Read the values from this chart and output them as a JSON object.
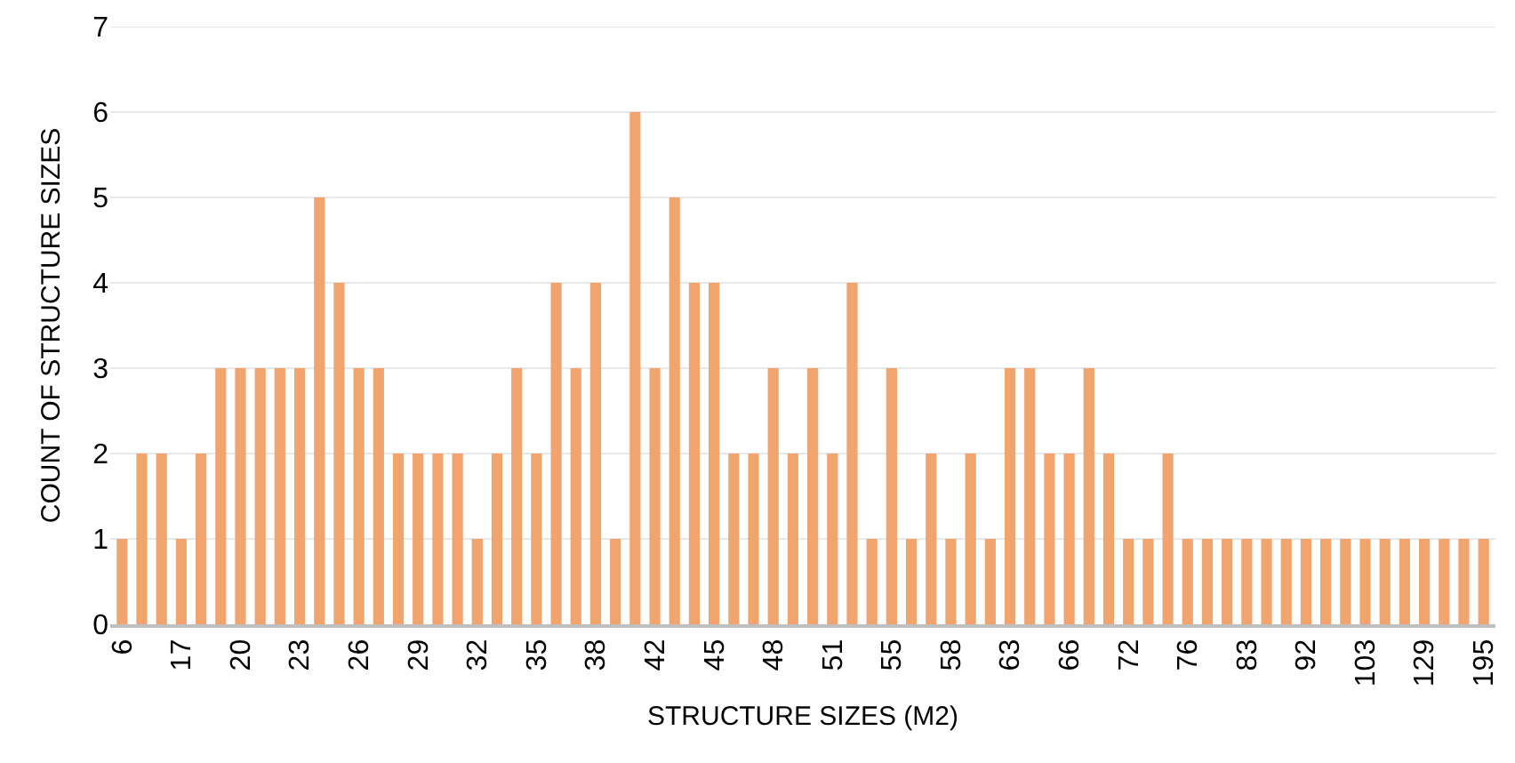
{
  "chart_data": {
    "type": "bar",
    "xlabel": "STRUCTURE SIZES (M2)",
    "ylabel": "COUNT OF STRUCTURE SIZES",
    "categories": [
      "6",
      null,
      null,
      "17",
      null,
      null,
      "20",
      null,
      null,
      "23",
      null,
      null,
      "26",
      null,
      null,
      "29",
      null,
      null,
      "32",
      null,
      null,
      "35",
      null,
      null,
      "38",
      null,
      null,
      "42",
      null,
      null,
      "45",
      null,
      null,
      "48",
      null,
      null,
      "51",
      null,
      null,
      "55",
      null,
      null,
      "58",
      null,
      null,
      "63",
      null,
      null,
      "66",
      null,
      null,
      "72",
      null,
      null,
      "76",
      null,
      null,
      "83",
      null,
      null,
      "92",
      null,
      null,
      "103",
      null,
      null,
      "129",
      null,
      null,
      "195"
    ],
    "values": [
      1,
      2,
      2,
      1,
      2,
      3,
      3,
      3,
      3,
      3,
      5,
      4,
      3,
      3,
      2,
      2,
      2,
      2,
      1,
      2,
      3,
      2,
      4,
      3,
      4,
      1,
      6,
      3,
      5,
      4,
      4,
      2,
      2,
      3,
      2,
      3,
      2,
      4,
      1,
      3,
      1,
      2,
      1,
      2,
      1,
      3,
      3,
      2,
      2,
      3,
      2,
      1,
      1,
      2,
      1,
      1,
      1,
      1,
      1,
      1,
      1,
      1,
      1,
      1,
      1,
      1,
      1,
      1,
      1,
      1
    ],
    "color": "#f2a46e",
    "ylim": [
      0,
      7
    ],
    "yticks": [
      0,
      1,
      2,
      3,
      4,
      5,
      6,
      7
    ],
    "grid": "y"
  }
}
